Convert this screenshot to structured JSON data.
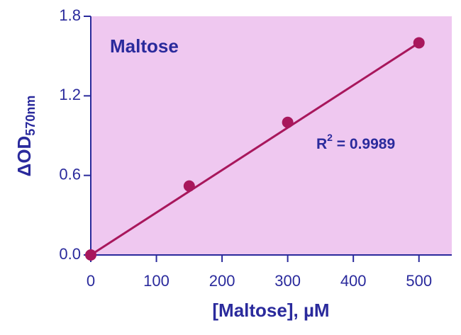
{
  "chart_data": {
    "type": "scatter",
    "title": "Maltose",
    "xlabel": "[Maltose], µM",
    "ylabel": "ΔOD",
    "ylabel_sub": "570nm",
    "annotation": {
      "text": "R",
      "sup": "2",
      "rest": " = 0.9989"
    },
    "x": [
      0,
      150,
      300,
      500
    ],
    "values": [
      0,
      0.52,
      1.0,
      1.6
    ],
    "fit": {
      "x": [
        0,
        500
      ],
      "y": [
        0,
        1.6
      ]
    },
    "color": "#a8175c",
    "background": "#efc8f0",
    "xlim": [
      0,
      550
    ],
    "xticks": [
      0,
      100,
      200,
      300,
      400,
      500
    ],
    "ylim": [
      0,
      1.8
    ],
    "yticks": [
      {
        "value": 0,
        "label": "0.0"
      },
      0.6,
      1.2,
      1.8
    ]
  }
}
